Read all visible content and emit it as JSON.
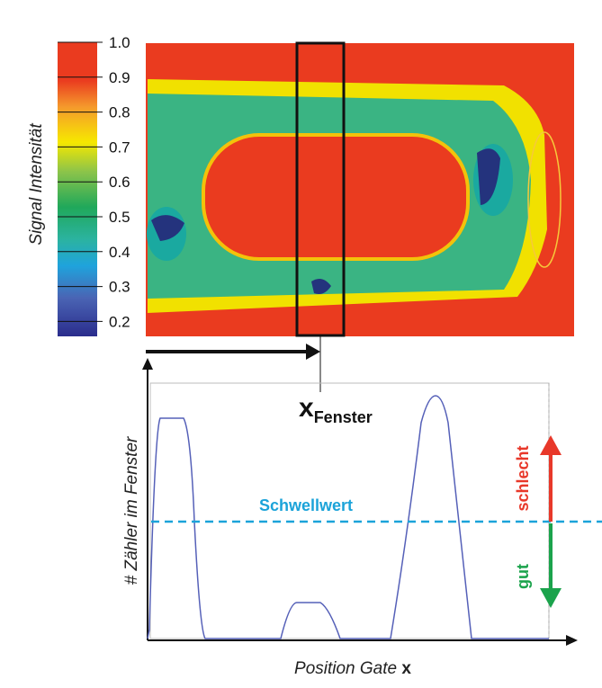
{
  "colorbar": {
    "title": "Signal Intensität",
    "ticks": [
      "1.0",
      "0.9",
      "0.8",
      "0.7",
      "0.6",
      "0.5",
      "0.4",
      "0.3",
      "0.2"
    ],
    "stops": [
      "#ea3b1f",
      "#ea3b1f",
      "#f59a2c",
      "#f6e800",
      "#7cc24a",
      "#20a85a",
      "#2bb3a0",
      "#1fa3dc",
      "#4a64b4",
      "#2a2c8c"
    ]
  },
  "heatmap": {
    "colors": {
      "high": "#ea3b1f",
      "yellow": "#f1e100",
      "green": "#39b47a",
      "teal": "#1aa9a0",
      "blue": "#24337d"
    }
  },
  "window_label": {
    "main": "x",
    "sub": "Fenster"
  },
  "lower_plot": {
    "ylabel": "# Zähler im Fenster",
    "xlabel_text": "Position Gate ",
    "xlabel_var": "x",
    "threshold_label": "Schwellwert",
    "bad_label": "schlecht",
    "good_label": "gut",
    "curve_color": "#5560b8",
    "threshold_color": "#1ba3d9",
    "bad_color": "#e8382a",
    "good_color": "#1ba34c"
  }
}
